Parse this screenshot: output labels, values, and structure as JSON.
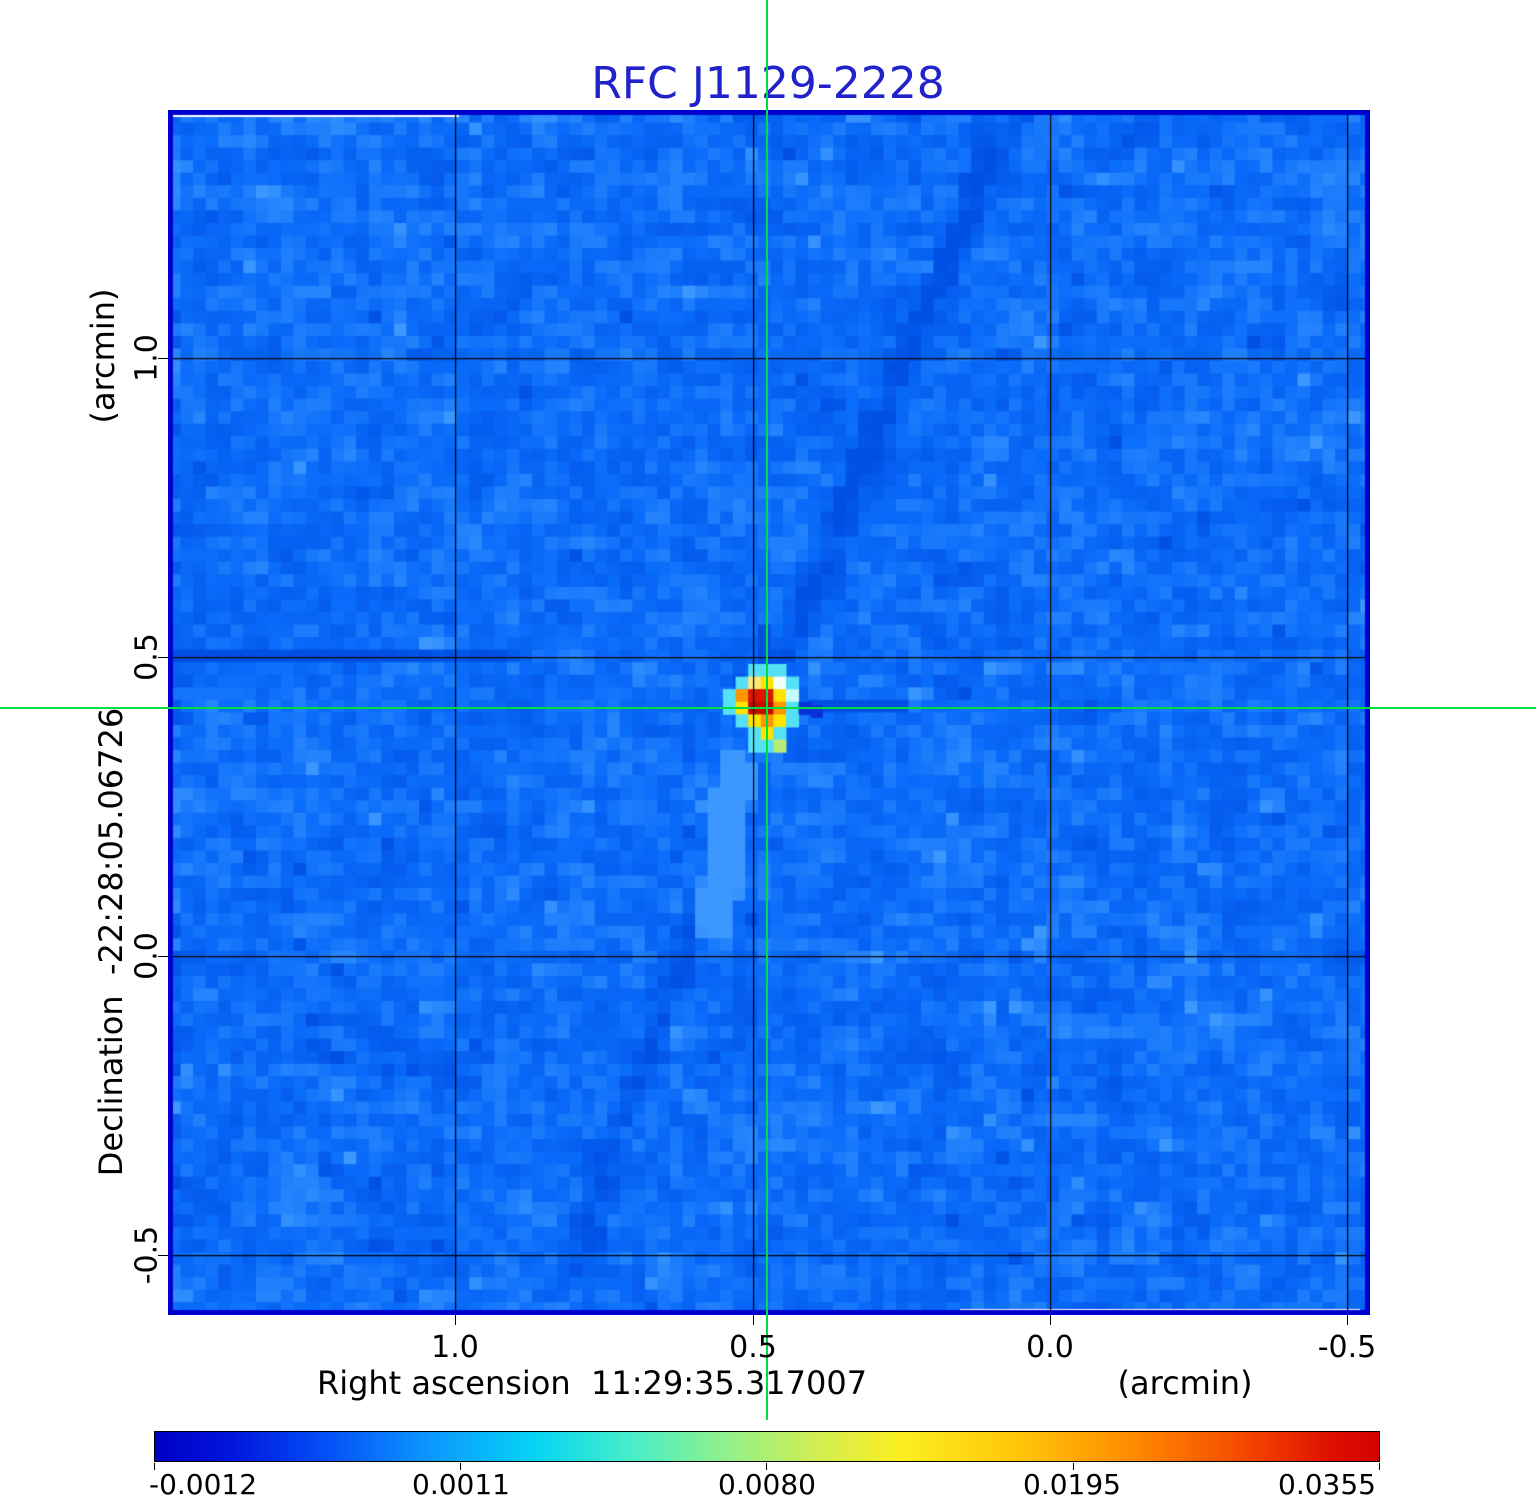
{
  "title": {
    "text": "RFC J1129-2228"
  },
  "y_axis": {
    "unit": "(arcmin)",
    "label": "Declination  -22:28:05.06726",
    "ticks": [
      "1.0",
      "0.5",
      "0.0",
      "-0.5"
    ]
  },
  "x_axis": {
    "label": "Right ascension  11:29:35.317007",
    "unit": "(arcmin)",
    "ticks": [
      "1.0",
      "0.5",
      "0.0",
      "-0.5"
    ]
  },
  "colorbar": {
    "labels": [
      "-0.0012",
      "0.0011",
      "0.0080",
      "0.0195",
      "0.0355"
    ],
    "gradient": [
      {
        "p": 0.0,
        "c": "#0000c4"
      },
      {
        "p": 0.06,
        "c": "#0014dc"
      },
      {
        "p": 0.14,
        "c": "#0450f8"
      },
      {
        "p": 0.23,
        "c": "#0c9cfe"
      },
      {
        "p": 0.31,
        "c": "#04d4f4"
      },
      {
        "p": 0.39,
        "c": "#48eec8"
      },
      {
        "p": 0.47,
        "c": "#94f088"
      },
      {
        "p": 0.54,
        "c": "#d0ee54"
      },
      {
        "p": 0.61,
        "c": "#fcee20"
      },
      {
        "p": 0.7,
        "c": "#ffc808"
      },
      {
        "p": 0.79,
        "c": "#ff9000"
      },
      {
        "p": 0.88,
        "c": "#f65000"
      },
      {
        "p": 0.96,
        "c": "#e01000"
      },
      {
        "p": 1.0,
        "c": "#d40000"
      }
    ]
  },
  "colors": {
    "title": "#2222cc",
    "crosshair": "#00dd44",
    "grid": "#000000",
    "plot_border": "#0000cc",
    "noise_dark": "#0050e4",
    "noise_base": "#0a6cfa",
    "noise_light": "#3c98ff",
    "white_line": "#ffffff"
  },
  "source": {
    "palette": {
      "c": "#55e0f6",
      "C": "#c6fbff",
      "w": "#f2ffff",
      "y": "#ffe400",
      "Y": "#ffe97a",
      "o": "#ff9500",
      "r": "#dd1500",
      "R": "#c40a00",
      "g": "#b8ec7a",
      "d": "#0832d8"
    },
    "pattern": [
      "..ccc..",
      ".cYywc.",
      "corryC.",
      "cyRRocd",
      ".cyoyc.",
      "..cyc..",
      "..ccg.."
    ]
  },
  "chart_data": {
    "type": "heatmap",
    "title": "RFC J1129-2228",
    "xlabel": "Right ascension  11:29:35.317007  (arcmin)",
    "ylabel": "Declination  -22:28:05.06726  (arcmin)",
    "x_ticks_arcmin": [
      1.0,
      0.5,
      0.0,
      -0.5
    ],
    "y_ticks_arcmin": [
      1.0,
      0.5,
      0.0,
      -0.5
    ],
    "x_range_arcmin": [
      1.48,
      -0.53
    ],
    "y_range_arcmin": [
      -0.6,
      1.41
    ],
    "grid": true,
    "crosshair_arcmin": {
      "x": 0.475,
      "y": 0.415
    },
    "source_peak": {
      "x_arcmin": 0.475,
      "y_arcmin": 0.415,
      "value": 0.0355
    },
    "colorbar_values": [
      -0.0012,
      0.0011,
      0.008,
      0.0195,
      0.0355
    ],
    "colorbar_scale": "nonlinear",
    "background_value_range": [
      -0.0012,
      0.0355
    ]
  }
}
